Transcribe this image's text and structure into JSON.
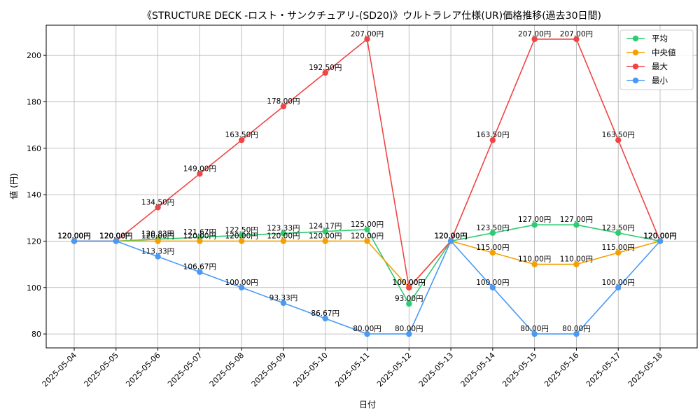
{
  "chart_data": {
    "type": "line",
    "title": "《STRUCTURE DECK -ロスト・サンクチュアリ-(SD20)》ウルトラレア仕様(UR)価格推移(過去30日間)",
    "xlabel": "日付",
    "ylabel": "値 (円)",
    "ylim": [
      74,
      213
    ],
    "yticks": [
      80,
      100,
      120,
      140,
      160,
      180,
      200
    ],
    "grid": true,
    "legend_position": "top-right",
    "label_suffix": "円",
    "categories": [
      "2025-05-04",
      "2025-05-05",
      "2025-05-06",
      "2025-05-07",
      "2025-05-08",
      "2025-05-09",
      "2025-05-10",
      "2025-05-11",
      "2025-05-12",
      "2025-05-13",
      "2025-05-14",
      "2025-05-15",
      "2025-05-16",
      "2025-05-17",
      "2025-05-18"
    ],
    "series": [
      {
        "name": "平均",
        "color": "#2ecc71",
        "values": [
          120,
          120,
          120.83,
          121.67,
          122.5,
          123.33,
          124.17,
          125,
          93,
          120,
          123.5,
          127,
          127,
          123.5,
          120
        ]
      },
      {
        "name": "中央値",
        "color": "#f5a000",
        "values": [
          120,
          120,
          120,
          120,
          120,
          120,
          120,
          120,
          100,
          120,
          115,
          110,
          110,
          115,
          120
        ]
      },
      {
        "name": "最大",
        "color": "#f04545",
        "values": [
          120,
          120,
          134.5,
          149,
          163.5,
          178,
          192.5,
          207,
          100,
          120,
          163.5,
          207,
          207,
          163.5,
          120
        ]
      },
      {
        "name": "最小",
        "color": "#4a9af5",
        "values": [
          120,
          120,
          113.33,
          106.67,
          100,
          93.33,
          86.67,
          80,
          80,
          120,
          100,
          80,
          80,
          100,
          120
        ]
      }
    ]
  }
}
